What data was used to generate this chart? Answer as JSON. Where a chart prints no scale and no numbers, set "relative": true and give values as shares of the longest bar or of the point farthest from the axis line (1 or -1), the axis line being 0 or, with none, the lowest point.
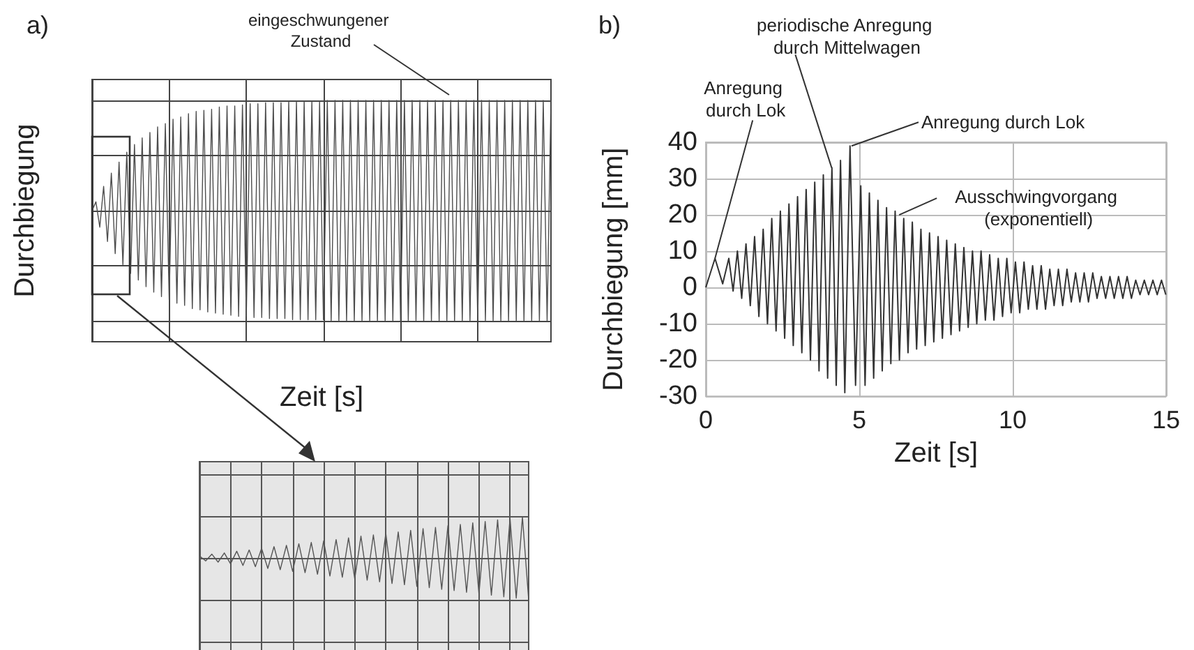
{
  "chart_data": [
    {
      "type": "line",
      "title": "a)",
      "xlabel": "Zeit [s]",
      "ylabel": "Durchbiegung",
      "relative": true,
      "grid": true,
      "color": "#4d4d4d",
      "annotations": [
        "eingeschwungener Zustand"
      ],
      "categories": [
        null,
        null,
        null,
        null,
        null,
        null,
        null,
        null,
        null,
        null,
        null,
        null,
        null,
        null,
        null,
        null,
        null,
        null,
        null,
        null,
        null,
        null,
        null,
        null,
        null,
        null,
        null,
        null,
        null,
        null,
        null,
        null,
        null,
        null,
        null,
        null,
        null,
        null,
        null,
        null,
        null,
        null,
        null,
        null,
        null,
        null,
        null,
        null,
        null,
        null,
        null,
        null,
        null,
        null,
        null,
        null,
        null,
        null,
        null,
        null,
        null,
        null,
        null,
        null,
        null,
        null,
        null,
        null,
        null,
        null,
        null,
        null,
        null,
        null,
        null,
        null,
        null,
        null,
        null,
        null,
        null,
        null,
        null,
        null,
        null,
        null,
        null,
        null,
        null,
        null,
        null,
        null,
        null,
        null,
        null,
        null,
        null,
        null,
        null,
        null,
        null,
        null,
        null,
        null,
        null,
        null,
        null,
        null,
        null,
        null,
        null,
        null,
        null,
        null,
        null,
        null,
        null,
        null,
        null,
        null
      ],
      "values": [
        0,
        0.08,
        -0.15,
        0.22,
        -0.28,
        0.34,
        -0.39,
        0.44,
        -0.49,
        0.53,
        -0.57,
        0.6,
        -0.63,
        0.66,
        -0.69,
        0.71,
        -0.74,
        0.76,
        -0.78,
        0.79,
        -0.81,
        0.83,
        -0.84,
        0.85,
        -0.86,
        0.88,
        -0.89,
        0.9,
        -0.9,
        0.91,
        -0.92,
        0.92,
        -0.93,
        0.94,
        -0.94,
        0.95,
        -0.95,
        0.95,
        -0.96,
        0.96,
        -0.96,
        0.97,
        -0.97,
        0.97,
        -0.97,
        0.98,
        -0.98,
        0.98,
        -0.98,
        0.98,
        -0.98,
        0.99,
        -0.99,
        0.99,
        -0.99,
        0.99,
        -0.99,
        0.99,
        -0.99,
        0.99,
        -0.99,
        1,
        -1,
        1,
        -1,
        1,
        -1,
        1,
        -1,
        1,
        -1,
        1,
        -1,
        1,
        -1,
        1,
        -1,
        1,
        -1,
        1,
        -1,
        1,
        -1,
        1,
        -1,
        1,
        -1,
        1,
        -1,
        1,
        -1,
        1,
        -1,
        1,
        -1,
        1,
        -1,
        1,
        -1,
        1,
        -1,
        1,
        -1,
        1,
        -1,
        1,
        -1,
        1,
        -1,
        1,
        -1,
        1,
        -1,
        1,
        -1,
        1,
        -1,
        1,
        -1,
        1
      ]
    },
    {
      "type": "line",
      "title": "b)",
      "xlabel": "Zeit [s]",
      "ylabel": "Durchbiegung [mm]",
      "grid": true,
      "color": "#333333",
      "xlim": [
        0,
        15
      ],
      "xticks": [
        0,
        5,
        10,
        15
      ],
      "ylim": [
        -30,
        40
      ],
      "yticks": [
        -30,
        -20,
        -10,
        0,
        10,
        20,
        30,
        40
      ],
      "annotations": [
        {
          "text": "Anregung durch Lok",
          "x": 0.3,
          "y": 8
        },
        {
          "text": "periodische Anregung durch Mittelwagen",
          "x": 4.1,
          "y": 33
        },
        {
          "text": "Anregung durch Lok",
          "x": 4.75,
          "y": 39
        },
        {
          "text": "Ausschwingvorgang (exponentiell)",
          "x": 6.3,
          "y": 20
        }
      ],
      "x": [
        0,
        0.3,
        0.55,
        0.75,
        0.89,
        1.03,
        1.17,
        1.31,
        1.45,
        1.59,
        1.73,
        1.87,
        2.01,
        2.15,
        2.29,
        2.43,
        2.57,
        2.71,
        2.85,
        2.99,
        3.13,
        3.27,
        3.41,
        3.55,
        3.69,
        3.83,
        3.97,
        4.11,
        4.25,
        4.39,
        4.53,
        4.7,
        4.88,
        5.05,
        5.19,
        5.33,
        5.47,
        5.61,
        5.75,
        5.89,
        6.03,
        6.17,
        6.31,
        6.45,
        6.59,
        6.73,
        6.87,
        7.01,
        7.15,
        7.29,
        7.43,
        7.57,
        7.71,
        7.85,
        7.99,
        8.13,
        8.27,
        8.41,
        8.55,
        8.69,
        8.83,
        8.97,
        9.11,
        9.25,
        9.39,
        9.53,
        9.67,
        9.81,
        9.95,
        10.09,
        10.23,
        10.37,
        10.51,
        10.65,
        10.79,
        10.93,
        11.07,
        11.21,
        11.35,
        11.49,
        11.63,
        11.77,
        11.91,
        12.05,
        12.19,
        12.33,
        12.47,
        12.61,
        12.75,
        12.89,
        13.03,
        13.17,
        13.31,
        13.45,
        13.59,
        13.73,
        13.87,
        14.01,
        14.15,
        14.29,
        14.43,
        14.57,
        14.71,
        14.85,
        14.99
      ],
      "values": [
        0,
        8,
        1,
        8,
        -1,
        10,
        -3,
        12,
        -5,
        14,
        -8,
        16,
        -10,
        19,
        -12,
        21,
        -14,
        23,
        -16,
        25,
        -18,
        27,
        -20,
        29,
        -23,
        31,
        -25,
        33,
        -27,
        35,
        -29,
        39,
        -27,
        28,
        -27,
        26,
        -25,
        24,
        -23,
        22,
        -21,
        21,
        -20,
        19,
        -18,
        18,
        -17,
        16,
        -16,
        15,
        -15,
        14,
        -14,
        13,
        -13,
        12,
        -12,
        11,
        -11,
        10,
        -10,
        10,
        -9,
        9,
        -9,
        8,
        -8,
        8,
        -7,
        7,
        -7,
        7,
        -6,
        6,
        -6,
        6,
        -6,
        5,
        -5,
        5,
        -5,
        5,
        -4,
        4,
        -4,
        4,
        -4,
        4,
        -3,
        3,
        -3,
        3,
        -3,
        3,
        -3,
        3,
        -3,
        2,
        -2,
        2,
        -2,
        2,
        -2,
        2,
        -2
      ]
    },
    {
      "type": "line",
      "relative": true,
      "grid": true,
      "color": "#555555",
      "categories": [
        null,
        null,
        null,
        null,
        null,
        null,
        null,
        null,
        null,
        null,
        null,
        null,
        null,
        null,
        null,
        null,
        null,
        null,
        null,
        null,
        null,
        null,
        null,
        null,
        null,
        null,
        null,
        null,
        null,
        null,
        null,
        null,
        null,
        null,
        null,
        null,
        null,
        null,
        null,
        null,
        null,
        null,
        null,
        null,
        null,
        null,
        null,
        null,
        null,
        null,
        null,
        null,
        null,
        null
      ],
      "values": [
        0.05,
        -0.07,
        0.09,
        -0.1,
        0.12,
        -0.14,
        0.16,
        -0.18,
        0.19,
        -0.21,
        0.23,
        -0.25,
        0.27,
        -0.28,
        0.3,
        -0.32,
        0.34,
        -0.35,
        0.37,
        -0.39,
        0.41,
        -0.43,
        0.44,
        -0.46,
        0.48,
        -0.5,
        0.52,
        -0.53,
        0.55,
        -0.57,
        0.59,
        -0.61,
        0.62,
        -0.64,
        0.66,
        -0.68,
        0.7,
        -0.71,
        0.73,
        -0.75,
        0.77,
        -0.78,
        0.8,
        -0.82,
        0.84,
        -0.86,
        0.87,
        -0.89,
        0.91,
        -0.93,
        0.95,
        -0.96,
        0.98,
        -1
      ]
    }
  ]
}
